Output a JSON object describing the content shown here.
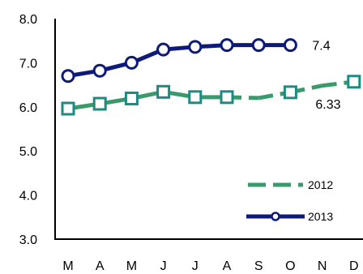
{
  "chart_data": {
    "type": "line",
    "title": "",
    "xlabel": "",
    "ylabel": "",
    "categories": [
      "M",
      "A",
      "M",
      "J",
      "J",
      "A",
      "S",
      "O",
      "N",
      "D"
    ],
    "ylim": [
      3.0,
      8.0
    ],
    "y_ticks": [
      "3.0",
      "4.0",
      "5.0",
      "6.0",
      "7.0",
      "8.0"
    ],
    "grid": false,
    "legend_position": "bottom-right",
    "series": [
      {
        "name": "2012",
        "color": "#3a9a6b",
        "marker_color": "#1f8a82",
        "style": "dashed",
        "marker": "square",
        "values": [
          5.96,
          6.07,
          6.19,
          6.34,
          6.22,
          6.22,
          6.2,
          6.33,
          6.48,
          6.57
        ],
        "markers_on": [
          true,
          true,
          true,
          true,
          true,
          true,
          false,
          true,
          false,
          true
        ],
        "dashed_segments": [
          false,
          false,
          false,
          false,
          false,
          true,
          true,
          true,
          true
        ]
      },
      {
        "name": "2013",
        "color": "#0d1a7a",
        "style": "solid",
        "marker": "circle",
        "values": [
          6.7,
          6.82,
          7.0,
          7.3,
          7.36,
          7.4,
          7.4,
          7.4,
          null,
          null
        ]
      }
    ],
    "annotations": [
      {
        "series": "2013",
        "index": 7,
        "text": "7.4"
      },
      {
        "series": "2012",
        "index": 7,
        "text": "6.33"
      }
    ]
  }
}
